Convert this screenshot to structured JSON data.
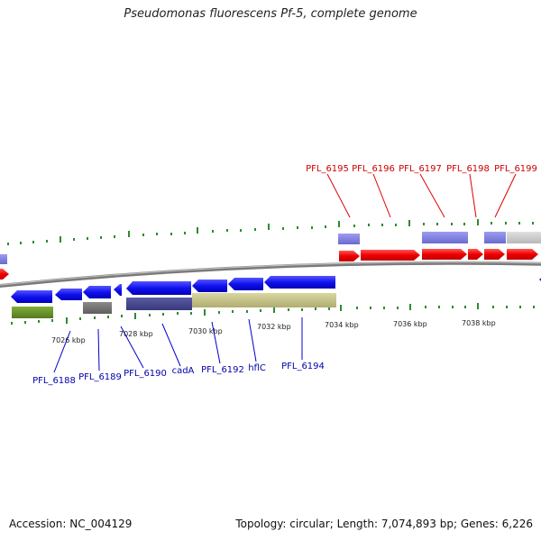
{
  "title": "Pseudomonas fluorescens Pf-5, complete genome",
  "footer": {
    "accession_label": "Accession:",
    "accession": "NC_004129",
    "topology_label": "Topology:",
    "topology": "circular",
    "length_label": "Length:",
    "length": "7,074,893 bp",
    "genes_label": "Genes:",
    "genes": "6,226"
  },
  "colors": {
    "forward_gene": "#ee1111",
    "reverse_gene": "#1111ee",
    "tick": "#2e8b2e",
    "backbone": "#888888",
    "forward_label": "#cc0000",
    "reverse_label": "#0000aa"
  },
  "axis": {
    "unit": "kbp",
    "ticks": [
      {
        "value": 7026,
        "label": "7026 kbp"
      },
      {
        "value": 7028,
        "label": "7028 kbp"
      },
      {
        "value": 7030,
        "label": "7030 kbp"
      },
      {
        "value": 7032,
        "label": "7032 kbp"
      },
      {
        "value": 7034,
        "label": "7034 kbp"
      },
      {
        "value": 7036,
        "label": "7036 kbp"
      },
      {
        "value": 7038,
        "label": "7038 kbp"
      }
    ]
  },
  "forward_genes": [
    {
      "name": "PFL_6195"
    },
    {
      "name": "PFL_6196"
    },
    {
      "name": "PFL_6197"
    },
    {
      "name": "PFL_6198"
    },
    {
      "name": "PFL_6199"
    }
  ],
  "reverse_genes": [
    {
      "name": "PFL_6188"
    },
    {
      "name": "PFL_6189"
    },
    {
      "name": "PFL_6190"
    },
    {
      "name": "cadA"
    },
    {
      "name": "PFL_6192"
    },
    {
      "name": "hflC"
    },
    {
      "name": "PFL_6194"
    }
  ]
}
